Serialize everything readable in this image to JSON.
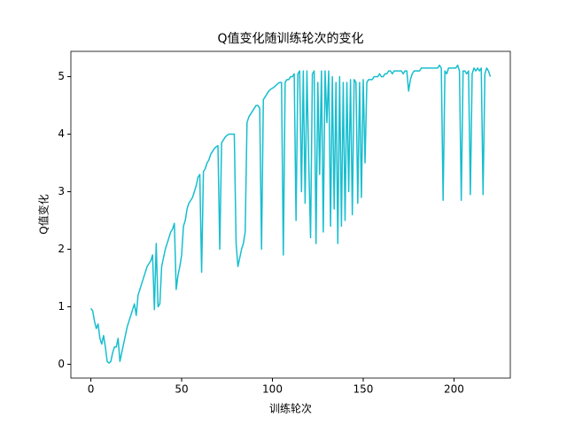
{
  "chart_data": {
    "type": "line",
    "title": "Q值变化随训练轮次的变化",
    "xlabel": "训练轮次",
    "ylabel": "Q值变化",
    "x": [
      0,
      1,
      2,
      3,
      4,
      5,
      6,
      7,
      8,
      9,
      10,
      11,
      12,
      13,
      14,
      15,
      16,
      17,
      18,
      19,
      20,
      21,
      22,
      23,
      24,
      25,
      26,
      27,
      28,
      29,
      30,
      31,
      32,
      33,
      34,
      35,
      36,
      37,
      38,
      39,
      40,
      41,
      42,
      43,
      44,
      45,
      46,
      47,
      48,
      49,
      50,
      51,
      52,
      53,
      54,
      55,
      56,
      57,
      58,
      59,
      60,
      61,
      62,
      63,
      64,
      65,
      66,
      67,
      68,
      69,
      70,
      71,
      72,
      73,
      74,
      75,
      76,
      77,
      78,
      79,
      80,
      81,
      82,
      83,
      84,
      85,
      86,
      87,
      88,
      89,
      90,
      91,
      92,
      93,
      94,
      95,
      96,
      97,
      98,
      99,
      100,
      101,
      102,
      103,
      104,
      105,
      106,
      107,
      108,
      109,
      110,
      111,
      112,
      113,
      114,
      115,
      116,
      117,
      118,
      119,
      120,
      121,
      122,
      123,
      124,
      125,
      126,
      127,
      128,
      129,
      130,
      131,
      132,
      133,
      134,
      135,
      136,
      137,
      138,
      139,
      140,
      141,
      142,
      143,
      144,
      145,
      146,
      147,
      148,
      149,
      150,
      151,
      152,
      153,
      154,
      155,
      156,
      157,
      158,
      159,
      160,
      161,
      162,
      163,
      164,
      165,
      166,
      167,
      168,
      169,
      170,
      171,
      172,
      173,
      174,
      175,
      176,
      177,
      178,
      179,
      180,
      181,
      182,
      183,
      184,
      185,
      186,
      187,
      188,
      189,
      190,
      191,
      192,
      193,
      194,
      195,
      196,
      197,
      198,
      199,
      200,
      201,
      202,
      203,
      204,
      205,
      206,
      207,
      208,
      209,
      210,
      211,
      212,
      213,
      214,
      215,
      216,
      217,
      218,
      219,
      220
    ],
    "series": [
      {
        "color": "#17becf",
        "values": [
          0.97,
          0.93,
          0.75,
          0.62,
          0.7,
          0.45,
          0.35,
          0.5,
          0.3,
          0.05,
          0.02,
          0.05,
          0.2,
          0.3,
          0.3,
          0.45,
          0.05,
          0.2,
          0.35,
          0.5,
          0.65,
          0.75,
          0.85,
          0.95,
          1.05,
          0.85,
          1.2,
          1.3,
          1.4,
          1.5,
          1.6,
          1.7,
          1.75,
          1.8,
          1.9,
          0.95,
          2.1,
          1.0,
          1.05,
          1.7,
          1.85,
          2.0,
          2.1,
          2.2,
          2.3,
          2.35,
          2.45,
          1.3,
          1.55,
          1.7,
          1.9,
          2.4,
          2.5,
          2.7,
          2.8,
          2.85,
          2.9,
          3.0,
          3.1,
          3.25,
          3.3,
          1.6,
          3.35,
          3.4,
          3.5,
          3.55,
          3.65,
          3.7,
          3.75,
          3.78,
          3.8,
          2.0,
          3.85,
          3.9,
          3.95,
          3.98,
          4.0,
          4.0,
          4.0,
          4.0,
          2.1,
          1.7,
          1.85,
          2.0,
          2.1,
          2.3,
          4.2,
          4.3,
          4.35,
          4.4,
          4.45,
          4.5,
          4.5,
          4.45,
          2.0,
          4.6,
          4.65,
          4.7,
          4.75,
          4.78,
          4.8,
          4.82,
          4.85,
          4.88,
          4.9,
          4.9,
          1.9,
          4.9,
          4.95,
          4.95,
          5.0,
          5.0,
          5.05,
          2.5,
          5.05,
          5.1,
          3.0,
          5.1,
          2.8,
          5.1,
          3.5,
          2.2,
          5.05,
          5.1,
          2.1,
          4.9,
          3.3,
          5.1,
          2.3,
          5.1,
          4.2,
          5.1,
          2.4,
          5.0,
          2.7,
          4.9,
          2.1,
          5.0,
          2.4,
          4.9,
          2.5,
          4.9,
          3.0,
          4.95,
          2.6,
          4.95,
          4.9,
          2.8,
          4.9,
          2.9,
          4.95,
          3.5,
          4.9,
          4.95,
          4.95,
          4.95,
          5.0,
          5.0,
          5.0,
          5.05,
          5.0,
          5.0,
          5.05,
          5.05,
          5.1,
          5.1,
          5.05,
          5.1,
          5.1,
          5.1,
          5.1,
          5.1,
          5.05,
          5.1,
          5.1,
          4.75,
          4.95,
          5.05,
          5.1,
          5.1,
          5.1,
          5.1,
          5.15,
          5.15,
          5.15,
          5.15,
          5.15,
          5.15,
          5.15,
          5.15,
          5.15,
          5.15,
          5.2,
          5.15,
          2.85,
          5.1,
          5.05,
          5.15,
          5.15,
          5.15,
          5.15,
          5.15,
          5.2,
          5.1,
          2.85,
          5.1,
          5.1,
          5.05,
          5.1,
          2.95,
          5.05,
          5.15,
          5.1,
          5.15,
          5.1,
          5.15,
          2.95,
          5.05,
          5.15,
          5.1,
          5.0
        ]
      }
    ],
    "xlim": [
      -11,
      231
    ],
    "ylim": [
      -0.24,
      5.44
    ],
    "xticks": [
      0,
      50,
      100,
      150,
      200
    ],
    "yticks": [
      0,
      1,
      2,
      3,
      4,
      5
    ],
    "grid": false
  }
}
